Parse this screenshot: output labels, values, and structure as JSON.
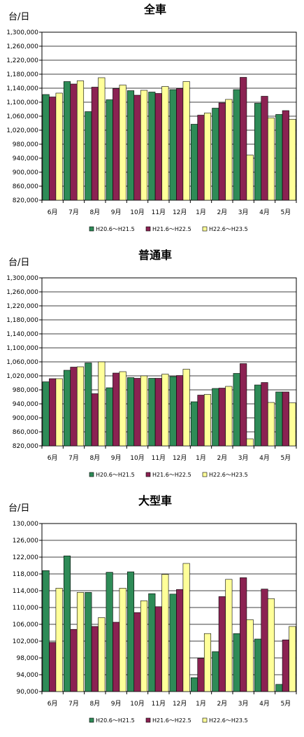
{
  "colors": {
    "s1": "#2e8b57",
    "s2": "#8b2252",
    "s3": "#ffff99",
    "grid": "#000000",
    "plot_bg": "#ffffff"
  },
  "chart_data": [
    {
      "type": "bar",
      "title": "全車",
      "ylabel": "台/日",
      "ylim": [
        820000,
        1300000
      ],
      "yticks": [
        "1,300,000",
        "1,260,000",
        "1,220,000",
        "1,180,000",
        "1,140,000",
        "1,100,000",
        "1,060,000",
        "1,020,000",
        "980,000",
        "940,000",
        "900,000",
        "860,000",
        "820,000"
      ],
      "categories": [
        "6月",
        "7月",
        "8月",
        "9月",
        "10月",
        "11月",
        "12月",
        "1月",
        "2月",
        "3月",
        "4月",
        "5月"
      ],
      "series": [
        {
          "name": "H20.6～H21.5",
          "values": [
            1122000,
            1159000,
            1073000,
            1107000,
            1133000,
            1129000,
            1136000,
            1037000,
            1083000,
            1136000,
            1097000,
            1065000
          ]
        },
        {
          "name": "H21.6～H22.5",
          "values": [
            1115000,
            1152000,
            1143000,
            1139000,
            1120000,
            1125000,
            1139000,
            1063000,
            1098000,
            1171000,
            1117000,
            1076000
          ]
        },
        {
          "name": "H22.6～H23.5",
          "values": [
            1126000,
            1161000,
            1170000,
            1149000,
            1134000,
            1145000,
            1159000,
            1069000,
            1108000,
            949000,
            1055000,
            1051000
          ]
        }
      ],
      "legend_position": "bottom"
    },
    {
      "type": "bar",
      "title": "普通車",
      "ylabel": "台/日",
      "ylim": [
        820000,
        1300000
      ],
      "yticks": [
        "1,300,000",
        "1,260,000",
        "1,220,000",
        "1,180,000",
        "1,140,000",
        "1,100,000",
        "1,060,000",
        "1,020,000",
        "980,000",
        "940,000",
        "900,000",
        "860,000",
        "820,000"
      ],
      "categories": [
        "6月",
        "7月",
        "8月",
        "9月",
        "10月",
        "11月",
        "12月",
        "1月",
        "2月",
        "3月",
        "4月",
        "5月"
      ],
      "series": [
        {
          "name": "H20.6～H21.5",
          "values": [
            1003000,
            1036000,
            1057000,
            986000,
            1015000,
            1013000,
            1018000,
            946000,
            984000,
            1027000,
            994000,
            974000
          ]
        },
        {
          "name": "H21.6～H22.5",
          "values": [
            1012000,
            1045000,
            969000,
            1028000,
            1013000,
            1013000,
            1021000,
            965000,
            985000,
            1055000,
            1001000,
            974000
          ]
        },
        {
          "name": "H22.6～H23.5",
          "values": [
            1012000,
            1046000,
            1060000,
            1032000,
            1020000,
            1025000,
            1039000,
            967000,
            990000,
            840000,
            944000,
            943000
          ]
        }
      ],
      "legend_position": "bottom"
    },
    {
      "type": "bar",
      "title": "大型車",
      "ylabel": "台/日",
      "ylim": [
        90000,
        130000
      ],
      "yticks": [
        "130,000",
        "126,000",
        "122,000",
        "118,000",
        "114,000",
        "110,000",
        "106,000",
        "102,000",
        "98,000",
        "94,000",
        "90,000"
      ],
      "categories": [
        "6月",
        "7月",
        "8月",
        "9月",
        "10月",
        "11月",
        "12月",
        "1月",
        "2月",
        "3月",
        "4月",
        "5月"
      ],
      "series": [
        {
          "name": "H20.6～H21.5",
          "values": [
            118800,
            122300,
            113600,
            118400,
            118500,
            113300,
            113200,
            93300,
            99500,
            103800,
            102500,
            91700
          ]
        },
        {
          "name": "H21.6～H22.5",
          "values": [
            101700,
            104800,
            105500,
            106500,
            108800,
            110200,
            114300,
            97900,
            112600,
            117100,
            114400,
            102300
          ]
        },
        {
          "name": "H22.6～H23.5",
          "values": [
            114600,
            113600,
            107600,
            114600,
            111600,
            117900,
            120500,
            103800,
            116700,
            107100,
            112100,
            105500
          ]
        }
      ],
      "legend_position": "bottom"
    }
  ]
}
